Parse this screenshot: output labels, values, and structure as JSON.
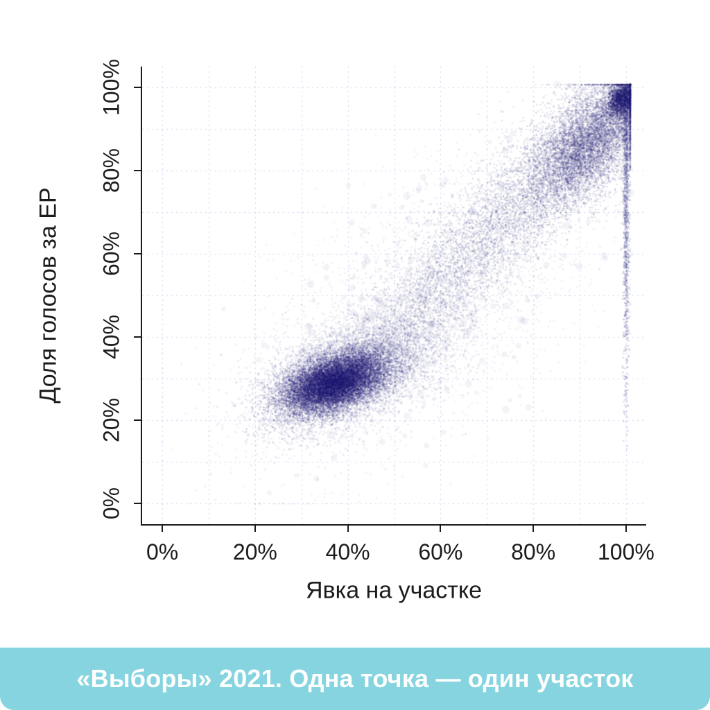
{
  "chart_data": {
    "type": "scatter",
    "title": "",
    "xlabel": "Явка на участке",
    "ylabel": "Доля голосов за ЕР",
    "xlim": [
      0,
      100
    ],
    "ylim": [
      0,
      100
    ],
    "x_ticks": {
      "values": [
        0,
        20,
        40,
        60,
        80,
        100
      ],
      "labels": [
        "0%",
        "20%",
        "40%",
        "60%",
        "80%",
        "100%"
      ]
    },
    "y_ticks": {
      "values": [
        0,
        20,
        40,
        60,
        80,
        100
      ],
      "labels": [
        "0%",
        "20%",
        "40%",
        "60%",
        "80%",
        "100%"
      ]
    },
    "grid": {
      "step": 10,
      "color": "#c9d4ef",
      "style": "dashed",
      "visible": true
    },
    "axis_color": "#1a1a1a",
    "point_color": "#1b156e",
    "legend": "none",
    "clusters": [
      {
        "name": "main-halo",
        "kind": "gauss",
        "mx": 40,
        "my": 31,
        "sx": 9.5,
        "sy": 7,
        "rho": 0.5,
        "n": 6000,
        "r": 1.6,
        "alpha": 0.08
      },
      {
        "name": "background-sparse",
        "kind": "gauss",
        "mx": 57,
        "my": 48,
        "sx": 19,
        "sy": 19,
        "rho": 0.6,
        "n": 2600,
        "r": 1.5,
        "alpha": 0.06
      },
      {
        "name": "large-faint-dots",
        "kind": "gauss",
        "mx": 60,
        "my": 50,
        "sx": 20,
        "sy": 20,
        "rho": 0.6,
        "n": 260,
        "rmin": 2.5,
        "rmax": 6,
        "alpha": 0.05
      },
      {
        "name": "diagonal-band",
        "kind": "line",
        "x1": 45,
        "y1": 35,
        "x2": 99,
        "y2": 97,
        "spread": 6.5,
        "bias": 0.8,
        "n": 7000,
        "r": 1.3,
        "alpha": 0.12
      },
      {
        "name": "top-right-cluster",
        "kind": "gauss",
        "mx": 92,
        "my": 86,
        "sx": 6,
        "sy": 7,
        "rho": 0.55,
        "n": 5000,
        "r": 1.3,
        "alpha": 0.15
      },
      {
        "name": "corner-dense",
        "kind": "gauss",
        "mx": 99,
        "my": 97,
        "sx": 1.6,
        "sy": 2.2,
        "rho": 0.3,
        "n": 1500,
        "r": 1.4,
        "alpha": 0.22
      },
      {
        "name": "turnout-100-line",
        "kind": "vline",
        "mx": 100,
        "sx": 0.35,
        "ymin": 10,
        "ymax": 100,
        "bias": 0.45,
        "n": 1200,
        "r": 1.3,
        "alpha": 0.16
      },
      {
        "name": "main-core",
        "kind": "gauss",
        "mx": 37,
        "my": 29,
        "sx": 5.5,
        "sy": 3.6,
        "rho": 0.45,
        "n": 14000,
        "r": 1.2,
        "alpha": 0.18
      }
    ]
  },
  "caption": {
    "text": "«Выборы» 2021. Одна точка — один участок",
    "background": "#85d4df",
    "text_color": "#ffffff"
  }
}
